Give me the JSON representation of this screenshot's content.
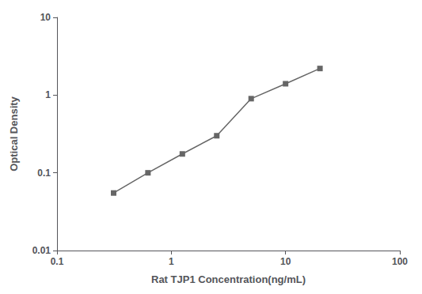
{
  "chart_data": {
    "type": "line",
    "x": [
      0.313,
      0.625,
      1.25,
      2.5,
      5.0,
      10.0,
      20.0
    ],
    "values": [
      0.055,
      0.1,
      0.175,
      0.3,
      0.9,
      1.4,
      2.2
    ],
    "xlabel": "Rat TJP1 Concentration(ng/mL)",
    "ylabel": "Optical Density",
    "xlim": [
      0.1,
      100
    ],
    "ylim": [
      0.01,
      10
    ],
    "xticks": [
      0.1,
      1,
      10,
      100
    ],
    "yticks": [
      0.01,
      0.1,
      1,
      10
    ],
    "log": true,
    "grid": false,
    "color": "#666666",
    "marker": "square",
    "line_style": "solid"
  }
}
